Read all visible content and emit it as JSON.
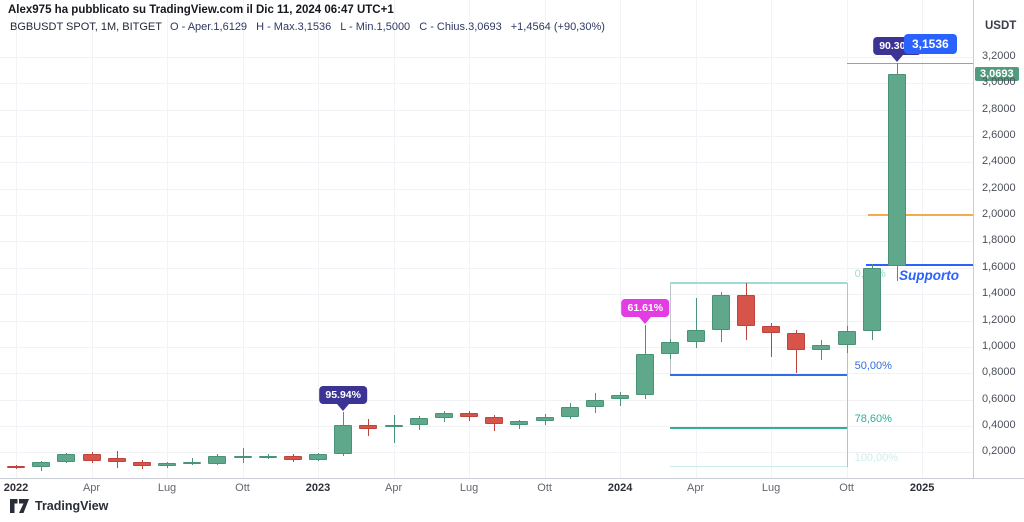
{
  "header": {
    "published": "Alex975 ha pubblicato su TradingView.com il Dic 11, 2024 06:47 UTC+1",
    "symbol": "BGBUSDT SPOT, 1M, BITGET",
    "legend": [
      "O - Aper.1,6129",
      "H - Max.3,1536",
      "L - Min.1,5000",
      "C - Chius.3,0693",
      "+1,4564 (+90,30%)"
    ]
  },
  "price_axis": {
    "currency": "USDT",
    "current_price": "3,0693",
    "ticks": [
      {
        "label": "3,2000",
        "value": 3.2
      },
      {
        "label": "3,0000",
        "value": 3.0
      },
      {
        "label": "2,8000",
        "value": 2.8
      },
      {
        "label": "2,6000",
        "value": 2.6
      },
      {
        "label": "2,4000",
        "value": 2.4
      },
      {
        "label": "2,2000",
        "value": 2.2
      },
      {
        "label": "2,0000",
        "value": 2.0
      },
      {
        "label": "1,8000",
        "value": 1.8
      },
      {
        "label": "1,6000",
        "value": 1.6
      },
      {
        "label": "1,4000",
        "value": 1.4
      },
      {
        "label": "1,2000",
        "value": 1.2
      },
      {
        "label": "1,0000",
        "value": 1.0
      },
      {
        "label": "0,8000",
        "value": 0.8
      },
      {
        "label": "0,6000",
        "value": 0.6
      },
      {
        "label": "0,4000",
        "value": 0.4
      },
      {
        "label": "0,2000",
        "value": 0.2
      }
    ]
  },
  "time_axis": {
    "ticks": [
      {
        "label": "2022",
        "m": 0,
        "year": true
      },
      {
        "label": "Apr",
        "m": 3
      },
      {
        "label": "Lug",
        "m": 6
      },
      {
        "label": "Ott",
        "m": 9
      },
      {
        "label": "2023",
        "m": 12,
        "year": true
      },
      {
        "label": "Apr",
        "m": 15
      },
      {
        "label": "Lug",
        "m": 18
      },
      {
        "label": "Ott",
        "m": 21
      },
      {
        "label": "2024",
        "m": 24,
        "year": true
      },
      {
        "label": "Apr",
        "m": 27
      },
      {
        "label": "Lug",
        "m": 30
      },
      {
        "label": "Ott",
        "m": 33
      },
      {
        "label": "2025",
        "m": 36,
        "year": true
      }
    ]
  },
  "chart_data": {
    "type": "candlestick",
    "symbol": "BGBUSDT",
    "market": "SPOT",
    "exchange": "BITGET",
    "timeframe": "1M",
    "currency": "USDT",
    "ylim": [
      0,
      3.3
    ],
    "last_bar": {
      "open": 1.6129,
      "high": 3.1536,
      "low": 1.5,
      "close": 3.0693,
      "change_abs": "+1,4564",
      "change_pct": "+90,30%"
    },
    "candles": [
      {
        "t": "2022-01",
        "o": 0.095,
        "h": 0.105,
        "l": 0.075,
        "c": 0.085
      },
      {
        "t": "2022-02",
        "o": 0.085,
        "h": 0.135,
        "l": 0.055,
        "c": 0.125
      },
      {
        "t": "2022-03",
        "o": 0.125,
        "h": 0.195,
        "l": 0.115,
        "c": 0.185
      },
      {
        "t": "2022-04",
        "o": 0.185,
        "h": 0.205,
        "l": 0.115,
        "c": 0.13
      },
      {
        "t": "2022-05",
        "o": 0.16,
        "h": 0.21,
        "l": 0.08,
        "c": 0.13
      },
      {
        "t": "2022-06",
        "o": 0.13,
        "h": 0.145,
        "l": 0.07,
        "c": 0.095
      },
      {
        "t": "2022-07",
        "o": 0.095,
        "h": 0.125,
        "l": 0.08,
        "c": 0.115
      },
      {
        "t": "2022-08",
        "o": 0.115,
        "h": 0.155,
        "l": 0.1,
        "c": 0.13
      },
      {
        "t": "2022-09",
        "o": 0.11,
        "h": 0.185,
        "l": 0.1,
        "c": 0.17
      },
      {
        "t": "2022-10",
        "o": 0.16,
        "h": 0.235,
        "l": 0.115,
        "c": 0.175
      },
      {
        "t": "2022-11",
        "o": 0.165,
        "h": 0.19,
        "l": 0.145,
        "c": 0.175
      },
      {
        "t": "2022-12",
        "o": 0.175,
        "h": 0.185,
        "l": 0.125,
        "c": 0.14
      },
      {
        "t": "2023-01",
        "o": 0.14,
        "h": 0.195,
        "l": 0.13,
        "c": 0.185
      },
      {
        "t": "2023-02",
        "o": 0.185,
        "h": 0.505,
        "l": 0.175,
        "c": 0.41
      },
      {
        "t": "2023-03",
        "o": 0.41,
        "h": 0.45,
        "l": 0.32,
        "c": 0.38
      },
      {
        "t": "2023-04",
        "o": 0.395,
        "h": 0.485,
        "l": 0.27,
        "c": 0.405
      },
      {
        "t": "2023-05",
        "o": 0.405,
        "h": 0.475,
        "l": 0.37,
        "c": 0.46
      },
      {
        "t": "2023-06",
        "o": 0.46,
        "h": 0.515,
        "l": 0.43,
        "c": 0.495
      },
      {
        "t": "2023-07",
        "o": 0.495,
        "h": 0.515,
        "l": 0.44,
        "c": 0.465
      },
      {
        "t": "2023-08",
        "o": 0.465,
        "h": 0.48,
        "l": 0.365,
        "c": 0.41
      },
      {
        "t": "2023-09",
        "o": 0.41,
        "h": 0.445,
        "l": 0.38,
        "c": 0.435
      },
      {
        "t": "2023-10",
        "o": 0.435,
        "h": 0.49,
        "l": 0.41,
        "c": 0.47
      },
      {
        "t": "2023-11",
        "o": 0.47,
        "h": 0.575,
        "l": 0.45,
        "c": 0.545
      },
      {
        "t": "2023-12",
        "o": 0.545,
        "h": 0.65,
        "l": 0.5,
        "c": 0.6
      },
      {
        "t": "2024-01",
        "o": 0.6,
        "h": 0.66,
        "l": 0.55,
        "c": 0.635
      },
      {
        "t": "2024-02",
        "o": 0.635,
        "h": 1.165,
        "l": 0.6,
        "c": 0.945
      },
      {
        "t": "2024-03",
        "o": 0.945,
        "h": 1.06,
        "l": 0.91,
        "c": 1.035
      },
      {
        "t": "2024-04",
        "o": 1.035,
        "h": 1.37,
        "l": 0.99,
        "c": 1.13
      },
      {
        "t": "2024-05",
        "o": 1.13,
        "h": 1.42,
        "l": 1.04,
        "c": 1.395
      },
      {
        "t": "2024-06",
        "o": 1.395,
        "h": 1.485,
        "l": 1.05,
        "c": 1.155
      },
      {
        "t": "2024-07",
        "o": 1.155,
        "h": 1.18,
        "l": 0.92,
        "c": 1.105
      },
      {
        "t": "2024-08",
        "o": 1.105,
        "h": 1.13,
        "l": 0.8,
        "c": 0.975
      },
      {
        "t": "2024-09",
        "o": 0.975,
        "h": 1.05,
        "l": 0.9,
        "c": 1.015
      },
      {
        "t": "2024-10",
        "o": 1.015,
        "h": 1.155,
        "l": 0.95,
        "c": 1.12
      },
      {
        "t": "2024-11",
        "o": 1.12,
        "h": 1.63,
        "l": 1.05,
        "c": 1.6
      },
      {
        "t": "2024-12",
        "o": 1.6129,
        "h": 3.1536,
        "l": 1.5,
        "c": 3.0693
      }
    ]
  },
  "overlays": {
    "support": {
      "label": "Supporto",
      "price": 1.62,
      "color": "#2962ff",
      "from_month": 33.75
    },
    "orange_line": {
      "price": 2.0,
      "color": "#f3ab4e",
      "from_month": 33.85
    },
    "high_line": {
      "price": 3.1536,
      "color": "#9aa0ab",
      "from_month": 33
    },
    "fib": {
      "from_month": 26,
      "to_month": 33,
      "levels": [
        {
          "label": "0,00%",
          "value": 1.485,
          "color": "#9edbd2",
          "thin": false
        },
        {
          "label": "50,00%",
          "value": 0.787,
          "color": "#2f6fe4",
          "thin": false
        },
        {
          "label": "78,60%",
          "value": 0.387,
          "color": "#2fae98",
          "thin": false
        },
        {
          "label": "100,00%",
          "value": 0.088,
          "color": "#cdeee8",
          "thin": true
        }
      ],
      "verticals": [
        {
          "month": 26,
          "from": 1.485,
          "to": 0.787
        },
        {
          "month": 33,
          "from": 1.485,
          "to": 0.088
        }
      ]
    },
    "callouts": [
      {
        "text": "95.94%",
        "month": 13,
        "price": 0.505,
        "bg": "#3c3494"
      },
      {
        "text": "61.61%",
        "month": 25,
        "price": 1.165,
        "bg": "#e23ce2"
      },
      {
        "text": "90.30%",
        "month": 35,
        "price": 3.1536,
        "bg": "#3c3494"
      }
    ],
    "price_flag": {
      "text": "3,1536",
      "month": 35,
      "price": 3.1536,
      "bg": "#2962ff"
    }
  },
  "colors": {
    "up": "#5fa88b",
    "up_border": "#4a9377",
    "down": "#d6544a",
    "down_border": "#bf453c",
    "accent_blue": "#2962ff",
    "grid": "#f0f2f6",
    "axis_border": "#c9ccd4",
    "navy_label": "#3c3494",
    "magenta_label": "#e23ce2",
    "price_tag_green": "#539b7f"
  },
  "footer": {
    "brand": "TradingView"
  }
}
